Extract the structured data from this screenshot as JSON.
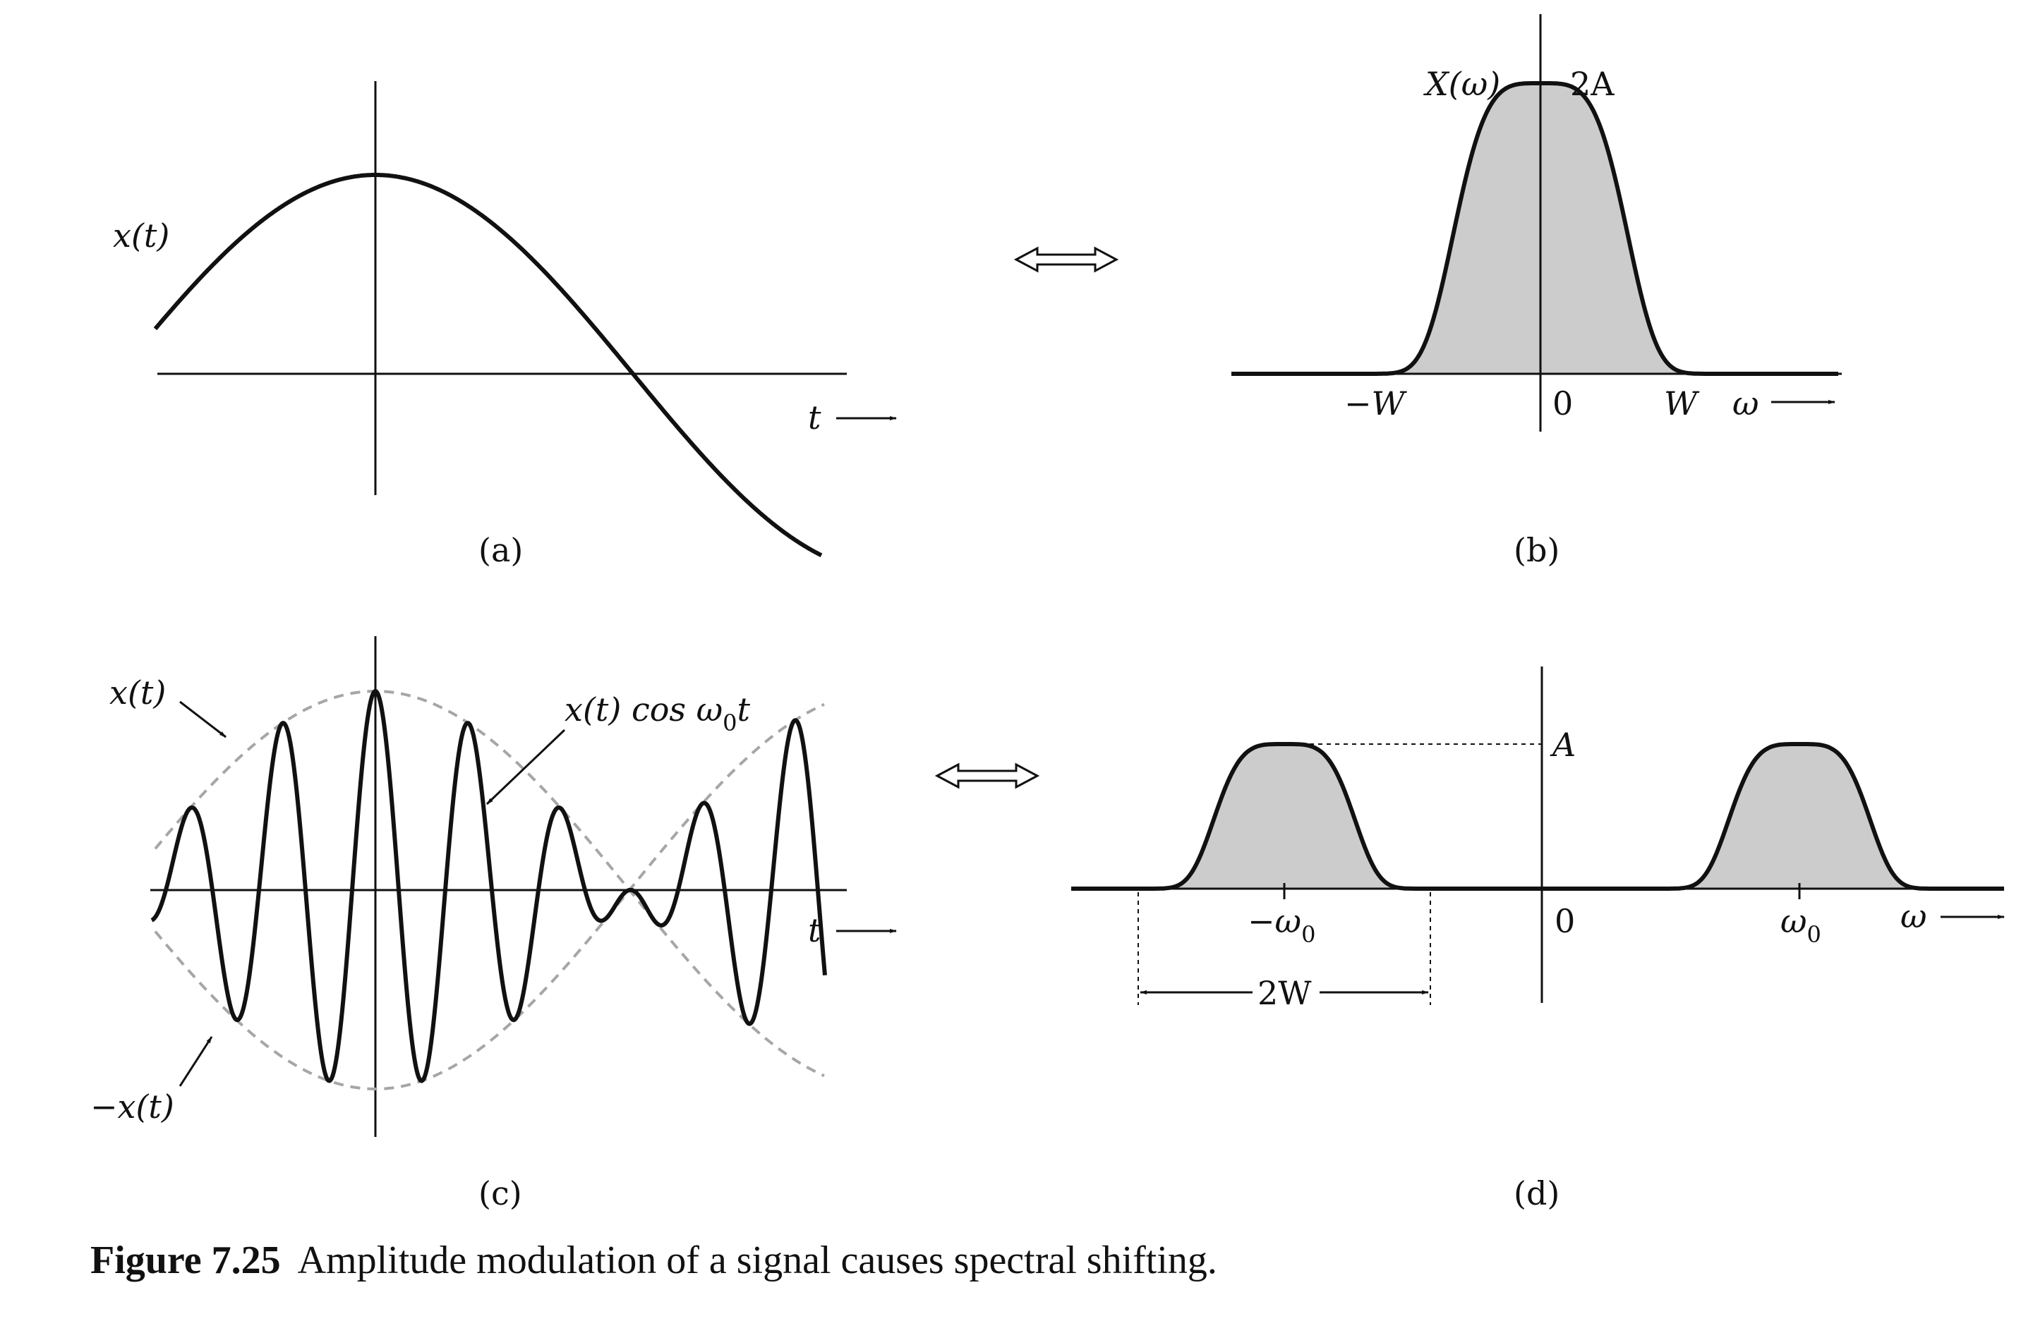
{
  "panels": {
    "a": {
      "tag": "(a)",
      "signal_label": "x(t)",
      "axis_label": "t"
    },
    "b": {
      "tag": "(b)",
      "spectrum_label": "X(ω)",
      "peak_label": "2A",
      "neg_band": "−W",
      "origin": "0",
      "pos_band": "W",
      "axis_label": "ω"
    },
    "c": {
      "tag": "(c)",
      "envelope_label": "x(t)",
      "neg_envelope_label": "−x(t)",
      "modulated_label_main": "x(t) cos ω",
      "modulated_label_sub": "0",
      "modulated_label_end": "t",
      "axis_label": "t"
    },
    "d": {
      "tag": "(d)",
      "peak_label": "A",
      "neg_carrier_main": "−ω",
      "neg_carrier_sub": "0",
      "origin": "0",
      "pos_carrier_main": "ω",
      "pos_carrier_sub": "0",
      "axis_label": "ω",
      "bandwidth_label": "2W"
    },
    "transform_symbol": "⟺"
  },
  "caption": {
    "number": "Figure 7.25",
    "text": "Amplitude modulation of a signal causes spectral shifting."
  },
  "colors": {
    "ink": "#111111",
    "fill": "#cccccc",
    "envelope": "#a6a6a6"
  }
}
